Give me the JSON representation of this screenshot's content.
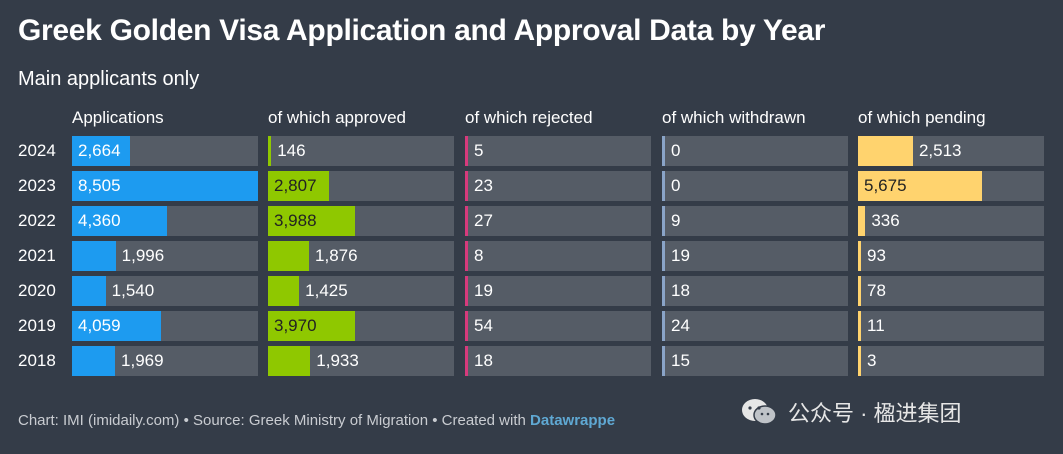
{
  "title": "Greek Golden Visa Application and Approval Data by Year",
  "subtitle": "Main applicants only",
  "footer": {
    "prefix": "Chart: IMI (imidaily.com) • Source: Greek Ministry of Migration • Created with ",
    "brand": "Datawrappe"
  },
  "watermark": {
    "text": "公众号 · 楹进集团"
  },
  "colors": {
    "applications": "#1d9bf0",
    "approved": "#8fc800",
    "rejected": "#d63a7c",
    "withdrawn": "#8aa4c8",
    "pending": "#ffd36e",
    "track": "#555c66",
    "background": "#343c48"
  },
  "chart_data": {
    "type": "bar",
    "title": "Greek Golden Visa Application and Approval Data by Year",
    "subtitle": "Main applicants only",
    "categories": [
      "2024",
      "2023",
      "2022",
      "2021",
      "2020",
      "2019",
      "2018"
    ],
    "scale_max": 8505,
    "series": [
      {
        "name": "Applications",
        "key": "applications",
        "values": [
          2664,
          8505,
          4360,
          1996,
          1540,
          4059,
          1969
        ],
        "labels": [
          "2,664",
          "8,505",
          "4,360",
          "1,996",
          "1,540",
          "4,059",
          "1,969"
        ]
      },
      {
        "name": "of which approved",
        "key": "approved",
        "values": [
          146,
          2807,
          3988,
          1876,
          1425,
          3970,
          1933
        ],
        "labels": [
          "146",
          "2,807",
          "3,988",
          "1,876",
          "1,425",
          "3,970",
          "1,933"
        ]
      },
      {
        "name": "of which rejected",
        "key": "rejected",
        "values": [
          5,
          23,
          27,
          8,
          19,
          54,
          18
        ],
        "labels": [
          "5",
          "23",
          "27",
          "8",
          "19",
          "54",
          "18"
        ]
      },
      {
        "name": "of which withdrawn",
        "key": "withdrawn",
        "values": [
          0,
          0,
          9,
          19,
          18,
          24,
          15
        ],
        "labels": [
          "0",
          "0",
          "9",
          "19",
          "18",
          "24",
          "15"
        ]
      },
      {
        "name": "of which pending",
        "key": "pending",
        "values": [
          2513,
          5675,
          336,
          93,
          78,
          11,
          3
        ],
        "labels": [
          "2,513",
          "5,675",
          "336",
          "93",
          "78",
          "11",
          "3"
        ]
      }
    ]
  }
}
